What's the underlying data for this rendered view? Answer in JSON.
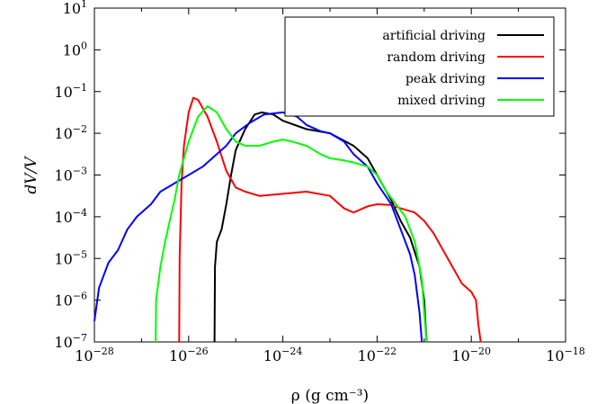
{
  "chart_data": {
    "type": "line",
    "xlabel": "ρ (g cm⁻³)",
    "ylabel": "dV/V",
    "xscale": "log",
    "yscale": "log",
    "xlim": [
      1e-28,
      1e-18
    ],
    "ylim": [
      1e-07,
      10
    ],
    "xticks": [
      {
        "base": "10",
        "exp": "−28",
        "value": -28
      },
      {
        "base": "10",
        "exp": "−26",
        "value": -26
      },
      {
        "base": "10",
        "exp": "−24",
        "value": -24
      },
      {
        "base": "10",
        "exp": "−22",
        "value": -22
      },
      {
        "base": "10",
        "exp": "−20",
        "value": -20
      },
      {
        "base": "10",
        "exp": "−18",
        "value": -18
      }
    ],
    "yticks": [
      {
        "base": "10",
        "exp": "1",
        "value": 1
      },
      {
        "base": "10",
        "exp": "0",
        "value": 0
      },
      {
        "base": "10",
        "exp": "−1",
        "value": -1
      },
      {
        "base": "10",
        "exp": "−2",
        "value": -2
      },
      {
        "base": "10",
        "exp": "−3",
        "value": -3
      },
      {
        "base": "10",
        "exp": "−4",
        "value": -4
      },
      {
        "base": "10",
        "exp": "−5",
        "value": -5
      },
      {
        "base": "10",
        "exp": "−6",
        "value": -6
      },
      {
        "base": "10",
        "exp": "−7",
        "value": -7
      }
    ],
    "legend_position": "top-right",
    "grid": false,
    "series": [
      {
        "name": "artificial driving",
        "color": "#000000",
        "log_x": [
          -25.45,
          -25.44,
          -25.4,
          -25.3,
          -25.2,
          -25.1,
          -25.0,
          -24.8,
          -24.6,
          -24.45,
          -24.2,
          -24.0,
          -23.5,
          -23.0,
          -22.5,
          -22.2,
          -22.0,
          -21.7,
          -21.5,
          -21.3,
          -21.1,
          -21.0,
          -20.95
        ],
        "log_y": [
          -7.0,
          -5.2,
          -4.6,
          -4.3,
          -3.7,
          -3.0,
          -2.4,
          -1.9,
          -1.55,
          -1.5,
          -1.55,
          -1.7,
          -1.9,
          -2.0,
          -2.3,
          -2.6,
          -3.0,
          -3.6,
          -4.1,
          -4.5,
          -5.2,
          -6.0,
          -7.0
        ]
      },
      {
        "name": "random driving",
        "color": "#ff0000",
        "log_x": [
          -26.2,
          -26.19,
          -26.15,
          -26.1,
          -26.0,
          -25.9,
          -25.8,
          -25.6,
          -25.4,
          -25.2,
          -25.0,
          -24.8,
          -24.5,
          -24.0,
          -23.5,
          -23.0,
          -22.7,
          -22.5,
          -22.2,
          -22.0,
          -21.7,
          -21.5,
          -21.2,
          -21.0,
          -20.8,
          -20.6,
          -20.4,
          -20.2,
          -20.0,
          -19.9,
          -19.85,
          -19.8
        ],
        "log_y": [
          -7.0,
          -5.0,
          -3.2,
          -2.3,
          -1.5,
          -1.15,
          -1.2,
          -1.6,
          -2.2,
          -2.9,
          -3.3,
          -3.4,
          -3.5,
          -3.45,
          -3.4,
          -3.5,
          -3.8,
          -3.9,
          -3.75,
          -3.7,
          -3.72,
          -3.8,
          -3.9,
          -4.1,
          -4.4,
          -4.8,
          -5.2,
          -5.6,
          -5.8,
          -6.0,
          -6.6,
          -7.0
        ]
      },
      {
        "name": "peak driving",
        "color": "#0000ff",
        "log_x": [
          -28.0,
          -27.9,
          -27.7,
          -27.5,
          -27.3,
          -27.1,
          -27.0,
          -26.8,
          -26.6,
          -26.3,
          -26.0,
          -25.7,
          -25.4,
          -25.2,
          -25.0,
          -24.7,
          -24.4,
          -24.0,
          -23.7,
          -23.5,
          -23.2,
          -23.0,
          -22.7,
          -22.5,
          -22.2,
          -22.0,
          -21.7,
          -21.5,
          -21.3,
          -21.2,
          -21.1,
          -21.05
        ],
        "log_y": [
          -6.5,
          -5.7,
          -5.1,
          -4.8,
          -4.3,
          -4.0,
          -3.9,
          -3.7,
          -3.4,
          -3.2,
          -3.0,
          -2.8,
          -2.5,
          -2.3,
          -2.0,
          -1.75,
          -1.55,
          -1.5,
          -1.6,
          -1.8,
          -1.95,
          -2.0,
          -2.2,
          -2.5,
          -2.8,
          -3.2,
          -3.7,
          -4.3,
          -4.9,
          -5.4,
          -6.3,
          -7.0
        ]
      },
      {
        "name": "mixed driving",
        "color": "#00ff00",
        "log_x": [
          -26.7,
          -26.69,
          -26.6,
          -26.5,
          -26.4,
          -26.3,
          -26.2,
          -26.1,
          -26.0,
          -25.8,
          -25.6,
          -25.4,
          -25.2,
          -25.0,
          -24.8,
          -24.5,
          -24.2,
          -24.0,
          -23.8,
          -23.5,
          -23.2,
          -23.0,
          -22.7,
          -22.5,
          -22.2,
          -22.0,
          -21.8,
          -21.6,
          -21.4,
          -21.2,
          -21.05,
          -21.0,
          -20.95
        ],
        "log_y": [
          -7.0,
          -6.0,
          -5.2,
          -4.6,
          -4.1,
          -3.6,
          -3.0,
          -2.6,
          -2.2,
          -1.6,
          -1.35,
          -1.5,
          -1.9,
          -2.2,
          -2.3,
          -2.3,
          -2.2,
          -2.15,
          -2.2,
          -2.3,
          -2.5,
          -2.6,
          -2.65,
          -2.7,
          -2.8,
          -3.0,
          -3.4,
          -3.7,
          -4.0,
          -4.6,
          -5.5,
          -6.3,
          -7.0
        ]
      }
    ]
  }
}
